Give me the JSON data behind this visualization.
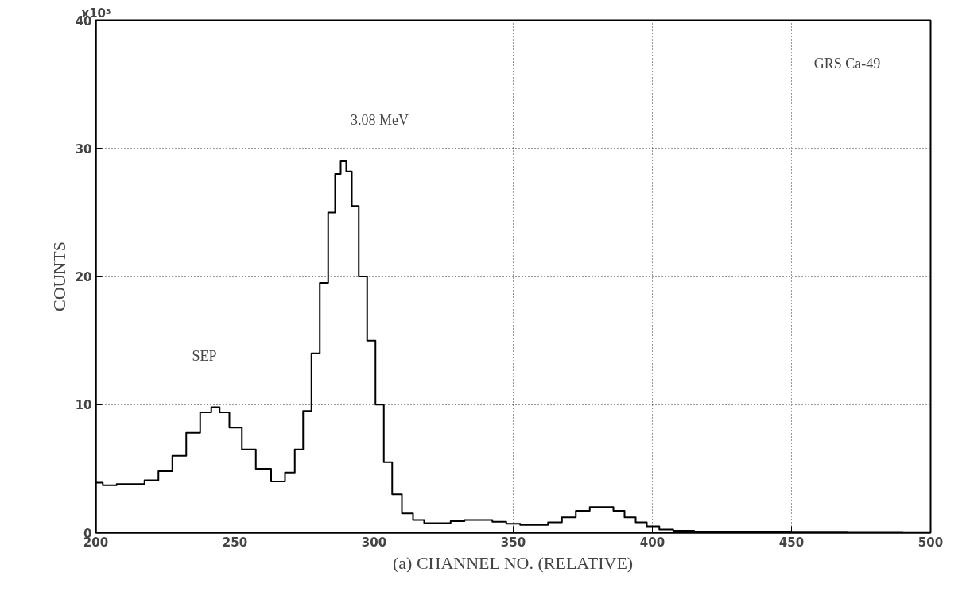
{
  "chart_data": {
    "type": "step",
    "xlabel": "(a) CHANNEL NO. (RELATIVE)",
    "ylabel": "COUNTS",
    "x": [
      200,
      205,
      210,
      215,
      220,
      225,
      230,
      235,
      240,
      243,
      246,
      250,
      255,
      260,
      266,
      270,
      273,
      276,
      279,
      282,
      285,
      287,
      289,
      291,
      293,
      296,
      299,
      302,
      305,
      308,
      312,
      316,
      320,
      325,
      330,
      335,
      340,
      345,
      350,
      355,
      360,
      365,
      370,
      375,
      380,
      384,
      388,
      392,
      396,
      400,
      405,
      410,
      420,
      440,
      460,
      480,
      500
    ],
    "series": [
      {
        "color": "#000000",
        "values": [
          3.9,
          3.7,
          3.8,
          3.8,
          4.1,
          4.8,
          6.0,
          7.8,
          9.4,
          9.8,
          9.4,
          8.2,
          6.5,
          5.0,
          4.0,
          4.7,
          6.5,
          9.5,
          14.0,
          19.5,
          25.0,
          28.0,
          29.0,
          28.2,
          25.5,
          20.0,
          15.0,
          10.0,
          5.5,
          3.0,
          1.5,
          1.0,
          0.75,
          0.75,
          0.9,
          1.0,
          1.0,
          0.85,
          0.7,
          0.6,
          0.6,
          0.8,
          1.2,
          1.7,
          2.0,
          2.0,
          1.7,
          1.2,
          0.8,
          0.5,
          0.25,
          0.15,
          0.1,
          0.1,
          0.08,
          0.06,
          0.05
        ]
      }
    ],
    "xlim": [
      200,
      500
    ],
    "ylim": [
      0,
      40
    ],
    "xticks": [
      200,
      250,
      300,
      350,
      400,
      450,
      500
    ],
    "yticks": [
      0,
      10,
      20,
      30,
      40
    ],
    "grid": true,
    "annotations": [
      "SEP",
      "3.08 MeV",
      "GRS Ca-49",
      "x10³"
    ]
  }
}
